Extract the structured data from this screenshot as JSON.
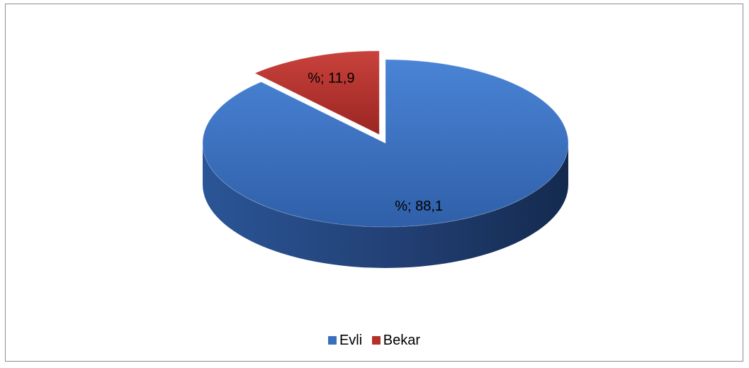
{
  "chart_data": {
    "type": "pie",
    "title": "",
    "slices": [
      {
        "name": "Evli",
        "value": 88.1,
        "label": "%; 88,1",
        "color": "#3a6fbf"
      },
      {
        "name": "Bekar",
        "value": 11.9,
        "label": "%; 11,9",
        "color": "#b52f2b"
      }
    ],
    "exploded_slice": "Bekar",
    "legend_position": "bottom",
    "style": "3d-exploded"
  },
  "legend": {
    "items": [
      {
        "label": "Evli",
        "color": "#3a6fbf"
      },
      {
        "label": "Bekar",
        "color": "#b52f2b"
      }
    ]
  }
}
